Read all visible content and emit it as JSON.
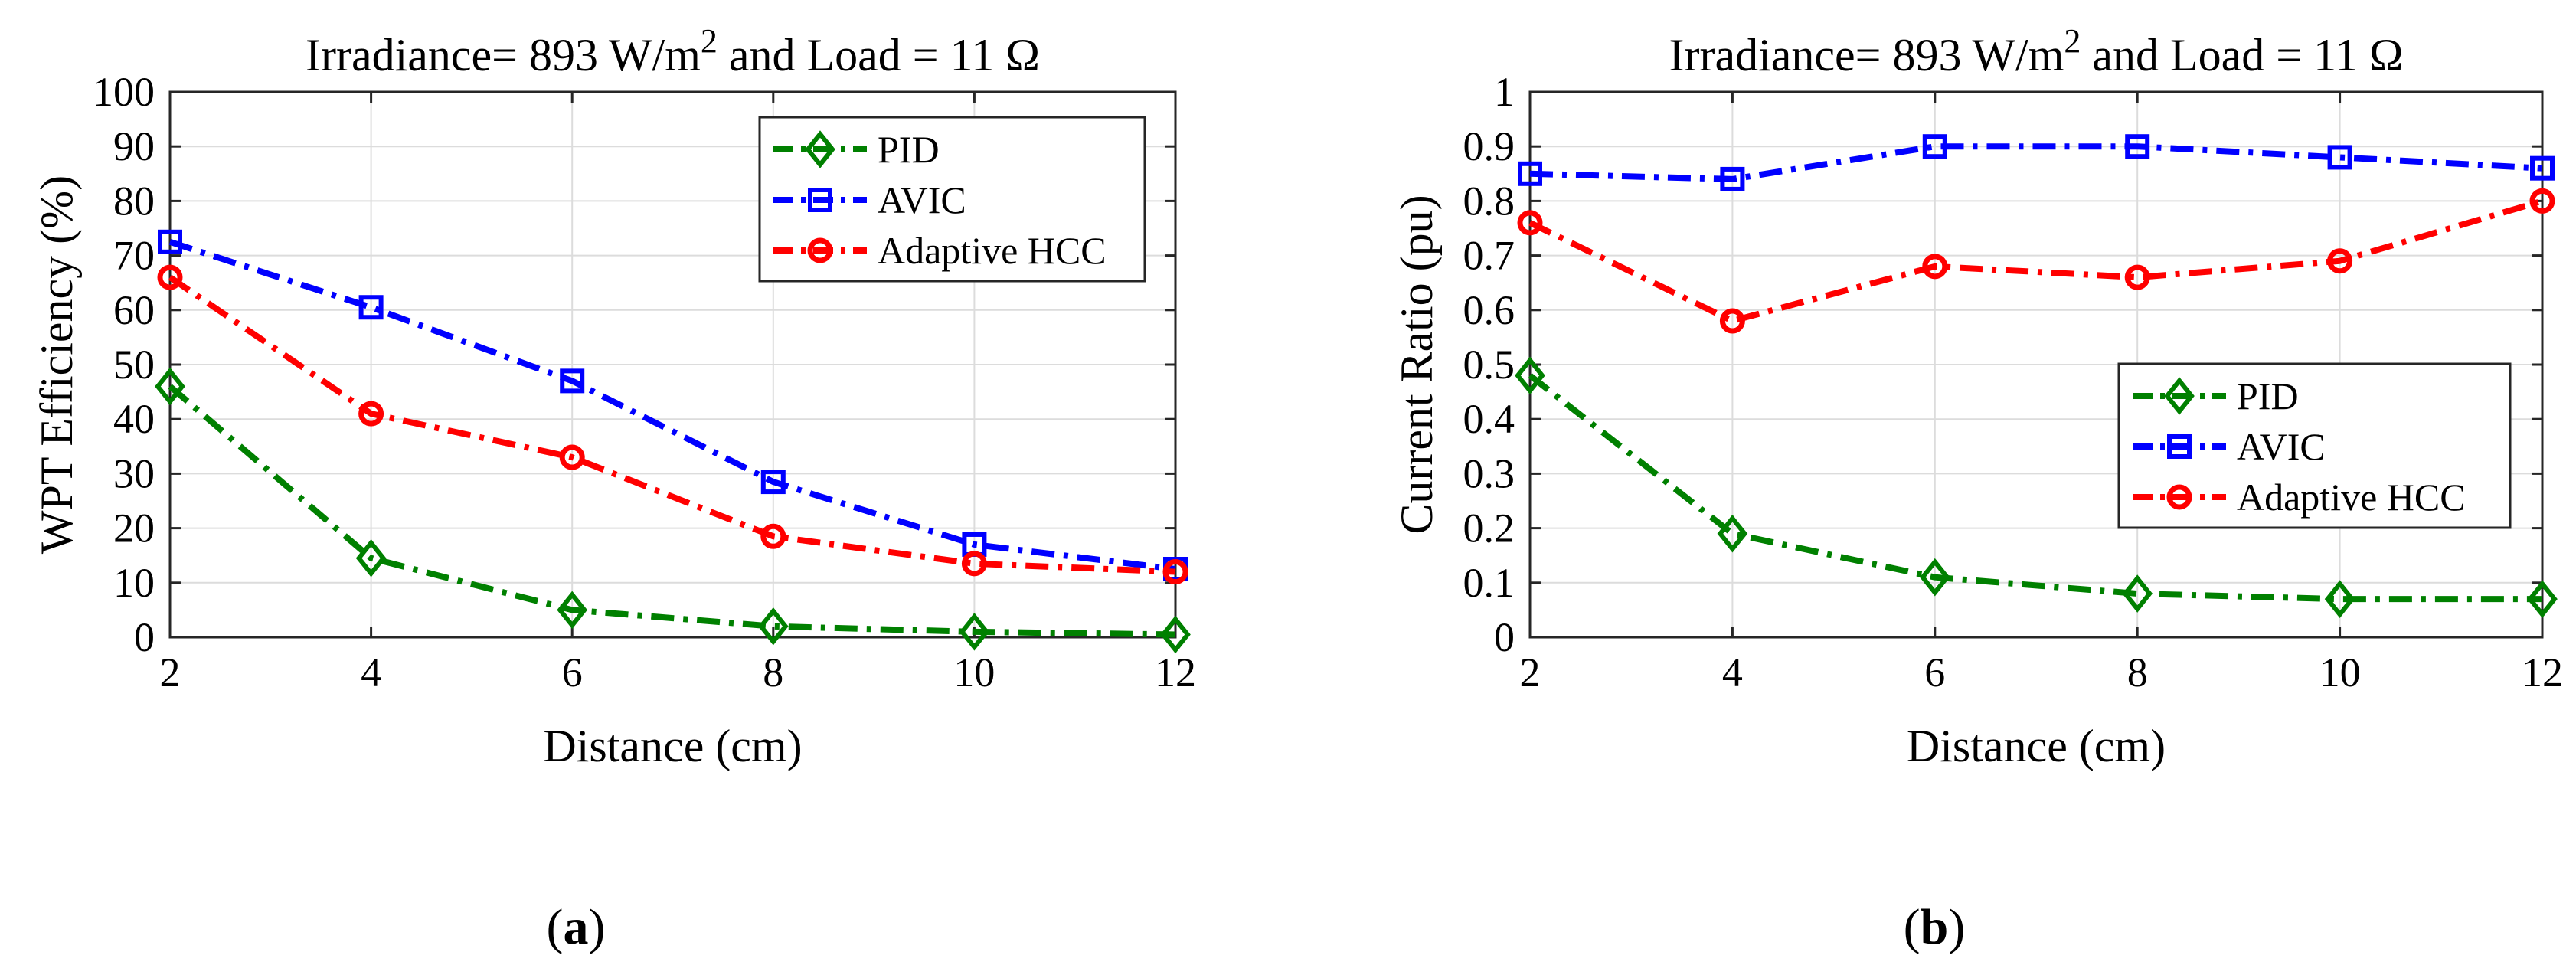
{
  "chart_data": [
    {
      "type": "line",
      "panel_label": "(a)",
      "title": {
        "main": "Irradiance= 893 W/m",
        "sup": "2",
        "rest": " and Load = 11 Ω"
      },
      "xlabel": "Distance (cm)",
      "ylabel": "WPT Efficiency (%)",
      "xlim": [
        2,
        12
      ],
      "ylim": [
        0,
        100
      ],
      "xticks": [
        2,
        4,
        6,
        8,
        10,
        12
      ],
      "yticks": [
        0,
        10,
        20,
        30,
        40,
        50,
        60,
        70,
        80,
        90,
        100
      ],
      "grid": true,
      "legend_position": "top-right",
      "x": [
        2,
        4,
        6,
        8,
        10,
        12
      ],
      "series": [
        {
          "name": "PID",
          "color": "#008000",
          "marker": "diamond",
          "values": [
            46,
            14.5,
            5,
            2,
            1,
            0.5
          ]
        },
        {
          "name": "AVIC",
          "color": "#0000ff",
          "marker": "square",
          "values": [
            72.5,
            60.5,
            47,
            28.5,
            17,
            12.5
          ]
        },
        {
          "name": "Adaptive HCC",
          "color": "#ff0000",
          "marker": "circle",
          "values": [
            66,
            41,
            33,
            18.5,
            13.5,
            12
          ]
        }
      ]
    },
    {
      "type": "line",
      "panel_label": "(b)",
      "title": {
        "main": "Irradiance= 893 W/m",
        "sup": "2",
        "rest": " and Load = 11 Ω"
      },
      "xlabel": "Distance (cm)",
      "ylabel": "Current Ratio (pu)",
      "xlim": [
        2,
        12
      ],
      "ylim": [
        0,
        1
      ],
      "xticks": [
        2,
        4,
        6,
        8,
        10,
        12
      ],
      "yticks": [
        0,
        0.1,
        0.2,
        0.3,
        0.4,
        0.5,
        0.6,
        0.7,
        0.8,
        0.9,
        1
      ],
      "grid": true,
      "legend_position": "center-right",
      "x": [
        2,
        4,
        6,
        8,
        10,
        12
      ],
      "series": [
        {
          "name": "PID",
          "color": "#008000",
          "marker": "diamond",
          "values": [
            0.48,
            0.19,
            0.11,
            0.08,
            0.07,
            0.07
          ]
        },
        {
          "name": "AVIC",
          "color": "#0000ff",
          "marker": "square",
          "values": [
            0.85,
            0.84,
            0.9,
            0.9,
            0.88,
            0.86
          ]
        },
        {
          "name": "Adaptive HCC",
          "color": "#ff0000",
          "marker": "circle",
          "values": [
            0.76,
            0.58,
            0.68,
            0.66,
            0.69,
            0.8
          ]
        }
      ]
    }
  ]
}
